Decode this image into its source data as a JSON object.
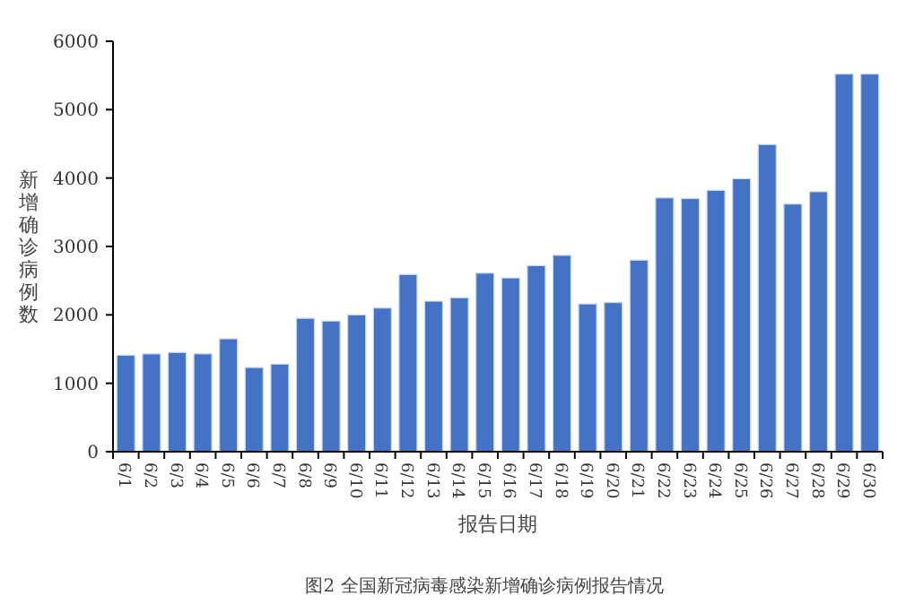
{
  "chart_data": {
    "type": "bar",
    "title": "图2 全国新冠病毒感染新增确诊病例报告情况",
    "xlabel": "报告日期",
    "ylabel": "新增确诊病例数",
    "categories": [
      "6/1",
      "6/2",
      "6/3",
      "6/4",
      "6/5",
      "6/6",
      "6/7",
      "6/8",
      "6/9",
      "6/10",
      "6/11",
      "6/12",
      "6/13",
      "6/14",
      "6/15",
      "6/16",
      "6/17",
      "6/18",
      "6/19",
      "6/20",
      "6/21",
      "6/22",
      "6/23",
      "6/24",
      "6/25",
      "6/26",
      "6/27",
      "6/28",
      "6/29",
      "6/30"
    ],
    "values": [
      1410,
      1430,
      1450,
      1430,
      1650,
      1230,
      1280,
      1950,
      1910,
      2000,
      2100,
      2590,
      2200,
      2250,
      2610,
      2540,
      2720,
      2870,
      2160,
      2180,
      2800,
      3710,
      3700,
      3820,
      3990,
      4490,
      3620,
      3800,
      5520,
      5520
    ],
    "color": "#4472c4",
    "ylim": [
      0,
      6000
    ],
    "yticks": [
      0,
      1000,
      2000,
      3000,
      4000,
      5000,
      6000
    ]
  }
}
